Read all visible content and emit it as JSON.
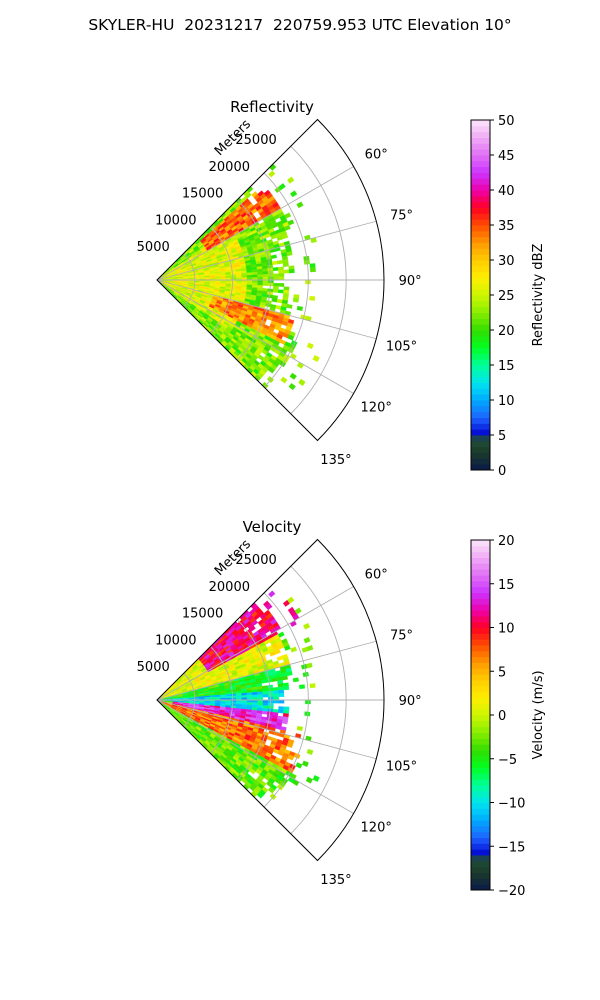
{
  "figure_title": "SKYLER-HU  20231217  220759.953 UTC Elevation 10°",
  "chart_data": [
    {
      "type": "heatmap",
      "projection": "polar-sector",
      "title": "Reflectivity",
      "range_label": "Meters",
      "range_ticks": [
        5000,
        10000,
        15000,
        20000,
        25000
      ],
      "range_max": 30000,
      "azimuth_range_deg": [
        45,
        135
      ],
      "azimuth_ticks": [
        "60°",
        "75°",
        "90°",
        "105°",
        "120°",
        "135°"
      ],
      "azimuth_tick_values": [
        60,
        75,
        90,
        105,
        120,
        135
      ],
      "colorbar": {
        "label": "Reflectivity dBZ",
        "min": 0,
        "max": 50,
        "ticks": [
          "0",
          "5",
          "10",
          "15",
          "20",
          "25",
          "30",
          "35",
          "40",
          "45",
          "50"
        ],
        "tick_values": [
          0,
          5,
          10,
          15,
          20,
          25,
          30,
          35,
          40,
          45,
          50
        ]
      },
      "colormap_stops": [
        {
          "v": 0,
          "c": "#0a1a4a"
        },
        {
          "v": 2.5,
          "c": "#1b3a2a"
        },
        {
          "v": 4.5,
          "c": "#1f4f3a"
        },
        {
          "v": 5,
          "c": "#0000cc"
        },
        {
          "v": 7.5,
          "c": "#1e64ff"
        },
        {
          "v": 10,
          "c": "#00aaff"
        },
        {
          "v": 12.5,
          "c": "#00e5ee"
        },
        {
          "v": 15,
          "c": "#00ff9a"
        },
        {
          "v": 17.5,
          "c": "#00ff22"
        },
        {
          "v": 20,
          "c": "#33dd00"
        },
        {
          "v": 22.5,
          "c": "#88ee00"
        },
        {
          "v": 25,
          "c": "#ccf500"
        },
        {
          "v": 27.5,
          "c": "#ffee00"
        },
        {
          "v": 30,
          "c": "#ffcc00"
        },
        {
          "v": 32.5,
          "c": "#ff9900"
        },
        {
          "v": 35,
          "c": "#ff4d00"
        },
        {
          "v": 37.5,
          "c": "#ff0022"
        },
        {
          "v": 40,
          "c": "#ee00aa"
        },
        {
          "v": 42.5,
          "c": "#cc33ff"
        },
        {
          "v": 45,
          "c": "#e070f5"
        },
        {
          "v": 47.5,
          "c": "#f0aaf5"
        },
        {
          "v": 50,
          "c": "#fbe6fb"
        }
      ],
      "field_description_regions": [
        {
          "az_from": 48,
          "az_to": 60,
          "range_from": 8000,
          "range_to": 19000,
          "value": 34
        },
        {
          "az_from": 105,
          "az_to": 117,
          "range_from": 8000,
          "range_to": 19000,
          "value": 33
        },
        {
          "az_from": 55,
          "az_to": 125,
          "range_from": 0,
          "range_to": 12000,
          "value": 26
        },
        {
          "az_from": 60,
          "az_to": 120,
          "range_from": 12000,
          "range_to": 26000,
          "value": 22
        }
      ],
      "echo_max_range_by_azimuth": [
        {
          "az": 45,
          "range": 18000
        },
        {
          "az": 60,
          "range": 18500
        },
        {
          "az": 75,
          "range": 18000
        },
        {
          "az": 90,
          "range": 16500
        },
        {
          "az": 105,
          "range": 18000
        },
        {
          "az": 120,
          "range": 20500
        },
        {
          "az": 135,
          "range": 18000
        }
      ]
    },
    {
      "type": "heatmap",
      "projection": "polar-sector",
      "title": "Velocity",
      "range_label": "Meters",
      "range_ticks": [
        5000,
        10000,
        15000,
        20000,
        25000
      ],
      "range_max": 30000,
      "azimuth_range_deg": [
        45,
        135
      ],
      "azimuth_ticks": [
        "60°",
        "75°",
        "90°",
        "105°",
        "120°",
        "135°"
      ],
      "azimuth_tick_values": [
        60,
        75,
        90,
        105,
        120,
        135
      ],
      "colorbar": {
        "label": "Velocity (m/s)",
        "min": -20,
        "max": 20,
        "ticks": [
          "−20",
          "−15",
          "−10",
          "−5",
          "0",
          "5",
          "10",
          "15",
          "20"
        ],
        "tick_values": [
          -20,
          -15,
          -10,
          -5,
          0,
          5,
          10,
          15,
          20
        ]
      },
      "colormap_stops": [
        {
          "v": -20,
          "c": "#0a1a4a"
        },
        {
          "v": -18,
          "c": "#1b3a2a"
        },
        {
          "v": -16.4,
          "c": "#1f4f3a"
        },
        {
          "v": -16,
          "c": "#0000cc"
        },
        {
          "v": -14,
          "c": "#1e64ff"
        },
        {
          "v": -12,
          "c": "#00aaff"
        },
        {
          "v": -10,
          "c": "#00e5ee"
        },
        {
          "v": -8,
          "c": "#00ff9a"
        },
        {
          "v": -6,
          "c": "#00ff22"
        },
        {
          "v": -4,
          "c": "#33dd00"
        },
        {
          "v": -2,
          "c": "#88ee00"
        },
        {
          "v": 0,
          "c": "#ccf500"
        },
        {
          "v": 2,
          "c": "#ffee00"
        },
        {
          "v": 4,
          "c": "#ffcc00"
        },
        {
          "v": 6,
          "c": "#ff9900"
        },
        {
          "v": 8,
          "c": "#ff4d00"
        },
        {
          "v": 10,
          "c": "#ff0022"
        },
        {
          "v": 12,
          "c": "#ee00aa"
        },
        {
          "v": 14,
          "c": "#cc33ff"
        },
        {
          "v": 16,
          "c": "#e070f5"
        },
        {
          "v": 18,
          "c": "#f0aaf5"
        },
        {
          "v": 20,
          "c": "#fbe6fb"
        }
      ],
      "field_description_regions": [
        {
          "az_from": 45,
          "az_to": 62,
          "range_from": 8000,
          "range_to": 22000,
          "value": 11
        },
        {
          "az_from": 45,
          "az_to": 75,
          "range_from": 0,
          "range_to": 18000,
          "value": 1
        },
        {
          "az_from": 75,
          "az_to": 85,
          "range_from": 0,
          "range_to": 18000,
          "value": -5
        },
        {
          "az_from": 85,
          "az_to": 96,
          "range_from": 0,
          "range_to": 18000,
          "value": -10
        },
        {
          "az_from": 96,
          "az_to": 104,
          "range_from": 2000,
          "range_to": 18000,
          "value": 13
        },
        {
          "az_from": 104,
          "az_to": 118,
          "range_from": 0,
          "range_to": 20000,
          "value": 7
        },
        {
          "az_from": 118,
          "az_to": 130,
          "range_from": 0,
          "range_to": 14000,
          "value": -3
        }
      ],
      "echo_max_range_by_azimuth": [
        {
          "az": 45,
          "range": 18000
        },
        {
          "az": 60,
          "range": 18500
        },
        {
          "az": 75,
          "range": 18000
        },
        {
          "az": 90,
          "range": 16500
        },
        {
          "az": 105,
          "range": 18000
        },
        {
          "az": 120,
          "range": 20500
        },
        {
          "az": 135,
          "range": 18000
        }
      ]
    }
  ]
}
